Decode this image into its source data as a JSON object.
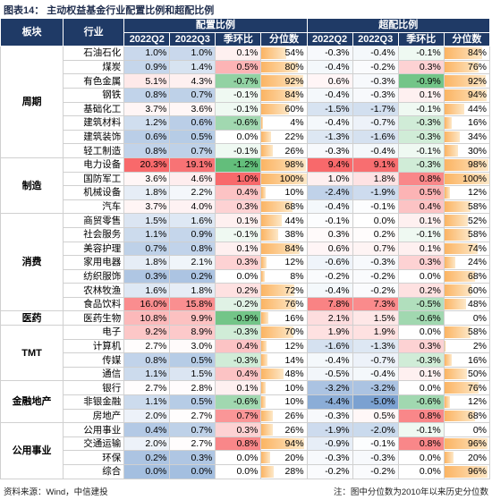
{
  "title": "图表14： 主动权益基金行业配置比例和超配比例",
  "header": {
    "sector": "板块",
    "industry": "行业",
    "group1": "配置比例",
    "group2": "超配比例",
    "columns": [
      "2022Q2",
      "2022Q3",
      "季环比",
      "分位数",
      "2022Q2",
      "2022Q3",
      "季环比",
      "分位数"
    ]
  },
  "sectors": [
    {
      "name": "周期",
      "rows": [
        {
          "industry": "石油石化",
          "cells": [
            "1.0%",
            "1.0%",
            "0.1%",
            "54%",
            "-0.3%",
            "-0.4%",
            "-0.1%",
            "84%"
          ]
        },
        {
          "industry": "煤炭",
          "cells": [
            "0.9%",
            "1.4%",
            "0.5%",
            "80%",
            "-0.4%",
            "-0.2%",
            "0.3%",
            "76%"
          ]
        },
        {
          "industry": "有色金属",
          "cells": [
            "5.1%",
            "4.3%",
            "-0.7%",
            "92%",
            "0.6%",
            "-0.3%",
            "-0.9%",
            "92%"
          ]
        },
        {
          "industry": "钢铁",
          "cells": [
            "0.8%",
            "0.7%",
            "-0.1%",
            "84%",
            "-0.4%",
            "-0.3%",
            "0.1%",
            "94%"
          ]
        },
        {
          "industry": "基础化工",
          "cells": [
            "3.7%",
            "3.6%",
            "-0.1%",
            "60%",
            "-1.5%",
            "-1.7%",
            "-0.1%",
            "44%"
          ]
        },
        {
          "industry": "建筑材料",
          "cells": [
            "1.2%",
            "0.6%",
            "-0.6%",
            "4%",
            "-0.4%",
            "-0.7%",
            "-0.3%",
            "16%"
          ]
        },
        {
          "industry": "建筑装饰",
          "cells": [
            "0.6%",
            "0.5%",
            "0.0%",
            "22%",
            "-1.3%",
            "-1.6%",
            "-0.3%",
            "34%"
          ]
        },
        {
          "industry": "轻工制造",
          "cells": [
            "0.8%",
            "0.7%",
            "-0.1%",
            "26%",
            "-0.3%",
            "-0.4%",
            "-0.1%",
            "30%"
          ]
        }
      ]
    },
    {
      "name": "制造",
      "rows": [
        {
          "industry": "电力设备",
          "cells": [
            "20.3%",
            "19.1%",
            "-1.2%",
            "98%",
            "9.4%",
            "9.1%",
            "-0.3%",
            "98%"
          ]
        },
        {
          "industry": "国防军工",
          "cells": [
            "3.6%",
            "4.6%",
            "1.0%",
            "100%",
            "1.0%",
            "1.8%",
            "0.8%",
            "100%"
          ]
        },
        {
          "industry": "机械设备",
          "cells": [
            "1.8%",
            "2.2%",
            "0.4%",
            "10%",
            "-2.4%",
            "-1.9%",
            "0.5%",
            "12%"
          ]
        },
        {
          "industry": "汽车",
          "cells": [
            "3.7%",
            "4.0%",
            "0.3%",
            "68%",
            "-0.4%",
            "-0.1%",
            "0.4%",
            "58%"
          ]
        }
      ]
    },
    {
      "name": "消费",
      "rows": [
        {
          "industry": "商贸零售",
          "cells": [
            "1.5%",
            "1.6%",
            "0.1%",
            "44%",
            "-0.1%",
            "0.0%",
            "0.1%",
            "52%"
          ]
        },
        {
          "industry": "社会服务",
          "cells": [
            "1.1%",
            "0.9%",
            "-0.1%",
            "38%",
            "0.3%",
            "0.2%",
            "-0.1%",
            "58%"
          ]
        },
        {
          "industry": "美容护理",
          "cells": [
            "0.7%",
            "0.8%",
            "0.1%",
            "84%",
            "0.6%",
            "0.7%",
            "0.1%",
            "74%"
          ]
        },
        {
          "industry": "家用电器",
          "cells": [
            "1.8%",
            "2.1%",
            "0.3%",
            "12%",
            "-0.6%",
            "-0.3%",
            "0.3%",
            "24%"
          ]
        },
        {
          "industry": "纺织服饰",
          "cells": [
            "0.3%",
            "0.2%",
            "0.0%",
            "8%",
            "-0.2%",
            "-0.2%",
            "0.0%",
            "68%"
          ]
        },
        {
          "industry": "农林牧渔",
          "cells": [
            "1.6%",
            "1.8%",
            "0.2%",
            "72%",
            "-0.4%",
            "-0.2%",
            "0.2%",
            "60%"
          ]
        },
        {
          "industry": "食品饮料",
          "cells": [
            "16.0%",
            "15.8%",
            "-0.2%",
            "76%",
            "7.8%",
            "7.3%",
            "-0.5%",
            "48%"
          ]
        }
      ]
    },
    {
      "name": "医药",
      "rows": [
        {
          "industry": "医药生物",
          "cells": [
            "10.8%",
            "9.9%",
            "-0.9%",
            "16%",
            "2.1%",
            "1.5%",
            "-0.6%",
            "0%"
          ]
        }
      ]
    },
    {
      "name": "TMT",
      "rows": [
        {
          "industry": "电子",
          "cells": [
            "9.2%",
            "8.9%",
            "-0.3%",
            "70%",
            "1.9%",
            "1.9%",
            "0.0%",
            "58%"
          ]
        },
        {
          "industry": "计算机",
          "cells": [
            "2.7%",
            "3.0%",
            "0.4%",
            "12%",
            "-1.6%",
            "-1.3%",
            "0.3%",
            "2%"
          ]
        },
        {
          "industry": "传媒",
          "cells": [
            "0.8%",
            "0.5%",
            "-0.3%",
            "14%",
            "-0.4%",
            "-0.7%",
            "-0.3%",
            "16%"
          ]
        },
        {
          "industry": "通信",
          "cells": [
            "1.1%",
            "1.5%",
            "0.4%",
            "48%",
            "-0.5%",
            "-0.4%",
            "0.1%",
            "50%"
          ]
        }
      ]
    },
    {
      "name": "金融地产",
      "rows": [
        {
          "industry": "银行",
          "cells": [
            "2.7%",
            "2.8%",
            "0.1%",
            "10%",
            "-3.2%",
            "-3.2%",
            "0.0%",
            "76%"
          ]
        },
        {
          "industry": "非银金融",
          "cells": [
            "1.1%",
            "0.5%",
            "-0.6%",
            "10%",
            "-4.4%",
            "-5.0%",
            "-0.6%",
            "12%"
          ]
        },
        {
          "industry": "房地产",
          "cells": [
            "2.0%",
            "2.7%",
            "0.7%",
            "26%",
            "-0.3%",
            "0.5%",
            "0.8%",
            "68%"
          ]
        }
      ]
    },
    {
      "name": "公用事业",
      "rows": [
        {
          "industry": "公用事业",
          "cells": [
            "0.4%",
            "0.7%",
            "0.3%",
            "26%",
            "-1.9%",
            "-2.0%",
            "-0.1%",
            "0%"
          ]
        },
        {
          "industry": "交通运输",
          "cells": [
            "2.0%",
            "2.7%",
            "0.8%",
            "94%",
            "-0.9%",
            "-0.1%",
            "0.8%",
            "96%"
          ]
        },
        {
          "industry": "环保",
          "cells": [
            "0.2%",
            "0.3%",
            "0.0%",
            "20%",
            "-0.3%",
            "-0.3%",
            "0.0%",
            "20%"
          ]
        },
        {
          "industry": "综合",
          "cells": [
            "0.0%",
            "0.0%",
            "0.0%",
            "28%",
            "-0.2%",
            "-0.2%",
            "0.0%",
            "96%"
          ]
        }
      ]
    }
  ],
  "footer": {
    "source": "资料来源：Wind，中信建投",
    "note": "注：图中分位数为2010年以来历史分位数"
  }
}
